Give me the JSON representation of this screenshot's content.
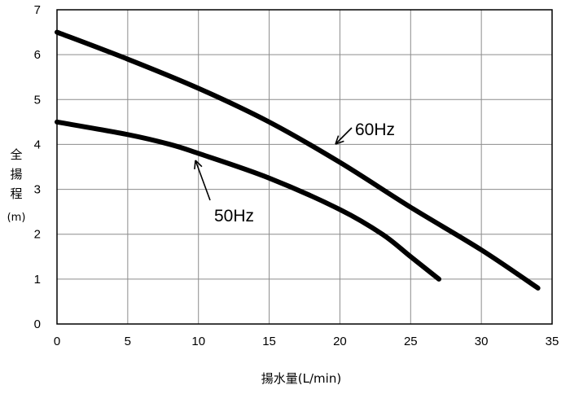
{
  "chart_data": {
    "type": "line",
    "xlabel": "揚水量(L/min)",
    "ylabel": [
      "全",
      "揚",
      "程",
      "(m)"
    ],
    "xlim": [
      0,
      35
    ],
    "ylim": [
      0,
      7
    ],
    "x_ticks": [
      0,
      5,
      10,
      15,
      20,
      25,
      30,
      35
    ],
    "y_ticks": [
      0,
      1,
      2,
      3,
      4,
      5,
      6,
      7
    ],
    "grid": true,
    "series": [
      {
        "name": "60Hz",
        "points": [
          [
            0,
            6.5
          ],
          [
            5,
            5.9
          ],
          [
            10,
            5.25
          ],
          [
            15,
            4.5
          ],
          [
            20,
            3.6
          ],
          [
            25,
            2.6
          ],
          [
            30,
            1.65
          ],
          [
            34,
            0.8
          ]
        ]
      },
      {
        "name": "50Hz",
        "points": [
          [
            0,
            4.5
          ],
          [
            5,
            4.22
          ],
          [
            8,
            4.0
          ],
          [
            10,
            3.8
          ],
          [
            15,
            3.25
          ],
          [
            20,
            2.55
          ],
          [
            23,
            2.0
          ],
          [
            25,
            1.5
          ],
          [
            27,
            1.0
          ]
        ]
      }
    ],
    "annotations": [
      {
        "text": "60Hz",
        "series": "60Hz",
        "points_to": [
          19.5,
          3.8
        ]
      },
      {
        "text": "50Hz",
        "series": "50Hz",
        "points_to": [
          9.7,
          3.65
        ]
      }
    ],
    "colors": {
      "line": "#000000",
      "grid": "#8c8c8c",
      "frame": "#000000"
    }
  }
}
